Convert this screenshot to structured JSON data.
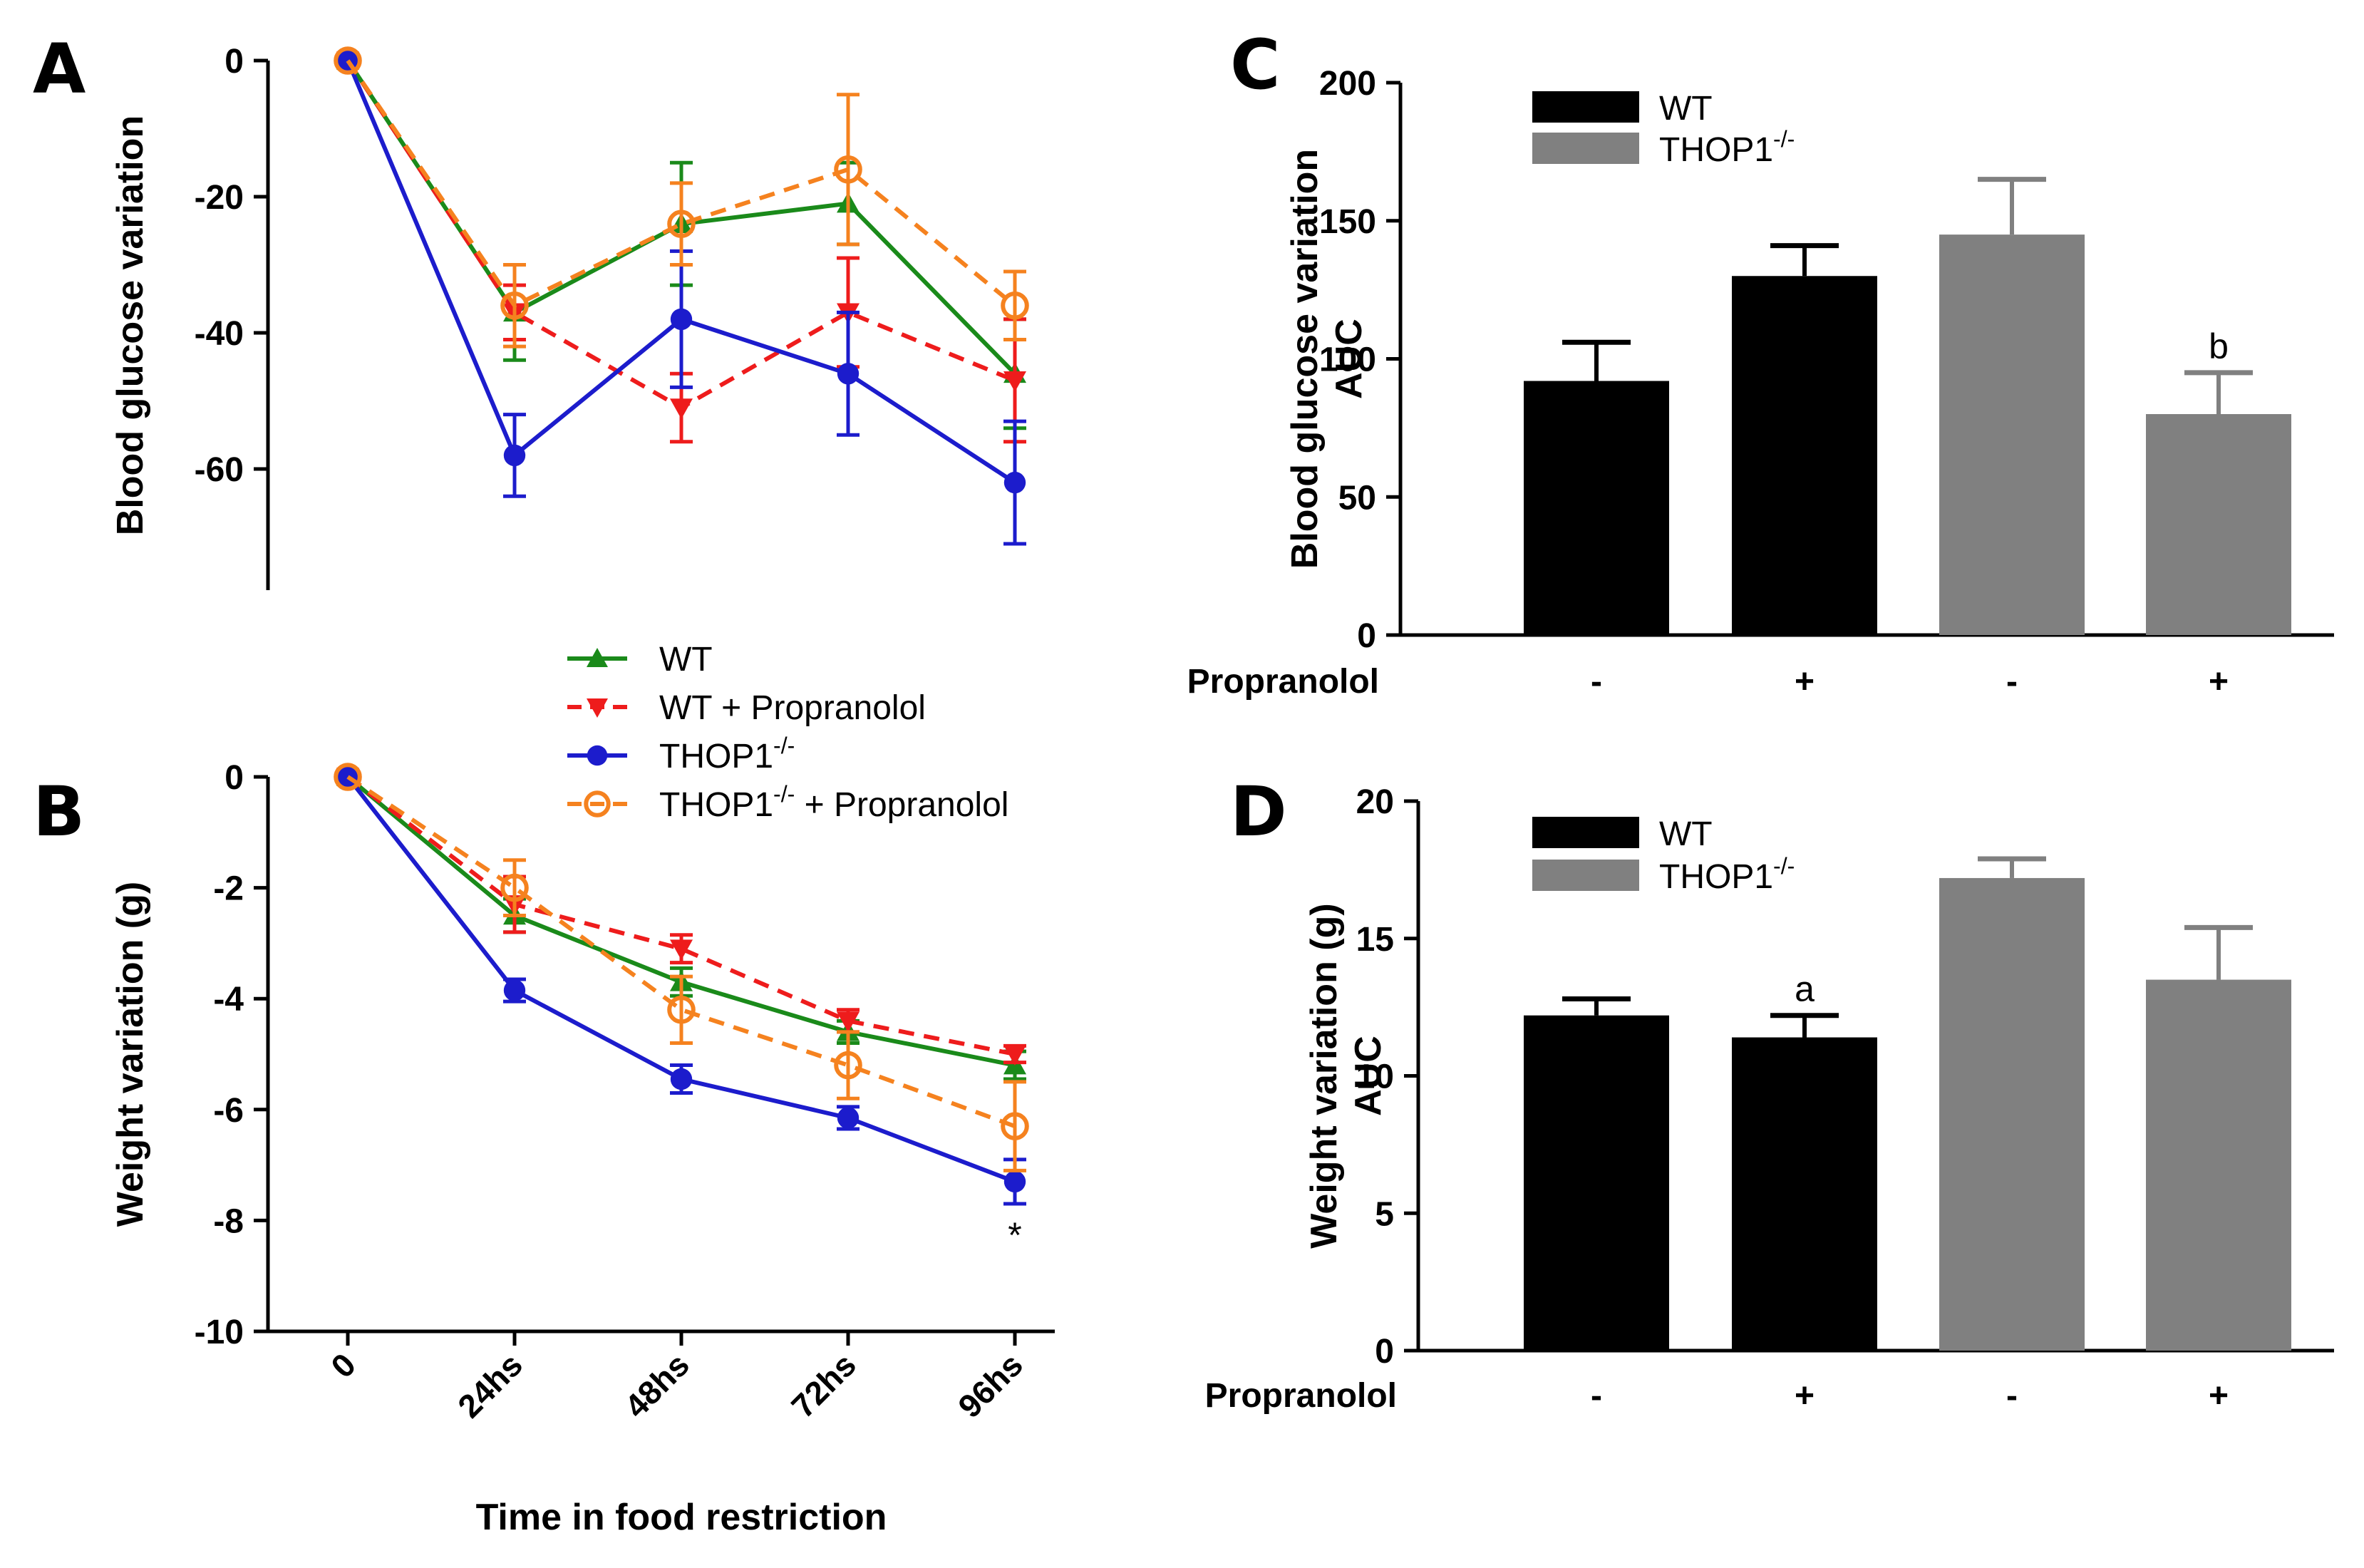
{
  "colors": {
    "wt": "#1a8a1a",
    "wt_propranolol": "#ee1c1c",
    "thop1": "#1c1ccc",
    "thop1_propranolol": "#f5821f",
    "bar_wt": "#000000",
    "bar_thop1": "#808080"
  },
  "legend": {
    "items": [
      {
        "label": "WT",
        "sup": "",
        "suffix": "",
        "color": "#1a8a1a",
        "marker": "triangle-up",
        "dash": false
      },
      {
        "label": "WT + Propranolol",
        "sup": "",
        "suffix": "",
        "color": "#ee1c1c",
        "marker": "triangle-down",
        "dash": true
      },
      {
        "label": "THOP1",
        "sup": "-/-",
        "suffix": "",
        "color": "#1c1ccc",
        "marker": "circle",
        "dash": false
      },
      {
        "label": "THOP1",
        "sup": "-/-",
        "suffix": " + Propranolol",
        "color": "#f5821f",
        "marker": "open-circle",
        "dash": true
      }
    ]
  },
  "shared_xlabel": "Time in food restriction",
  "chart_data": [
    {
      "panel": "A",
      "type": "line",
      "ylabel": "Blood glucose variation",
      "categories": [
        "0",
        "24hs",
        "48hs",
        "72hs",
        "96hs"
      ],
      "ylim": [
        -75,
        0
      ],
      "yticks": [
        0,
        -20,
        -40,
        -60
      ],
      "series": [
        {
          "name": "WT",
          "values": [
            0,
            -37,
            -24,
            -21,
            -46
          ],
          "errors": [
            0,
            7,
            9,
            6,
            8
          ]
        },
        {
          "name": "WT + Propranolol",
          "values": [
            0,
            -37,
            -51,
            -37,
            -47
          ],
          "errors": [
            0,
            4,
            5,
            8,
            9
          ]
        },
        {
          "name": "THOP1-/-",
          "values": [
            0,
            -58,
            -38,
            -46,
            -62
          ],
          "errors": [
            0,
            6,
            10,
            9,
            9
          ]
        },
        {
          "name": "THOP1-/- + Propranolol",
          "values": [
            0,
            -36,
            -24,
            -16,
            -36
          ],
          "errors": [
            0,
            6,
            6,
            11,
            5
          ]
        }
      ]
    },
    {
      "panel": "B",
      "type": "line",
      "ylabel": "Weight variation (g)",
      "xlabel": "Time in food restriction",
      "categories": [
        "0",
        "24hs",
        "48hs",
        "72hs",
        "96hs"
      ],
      "ylim": [
        -10,
        0
      ],
      "yticks": [
        0,
        -2,
        -4,
        -6,
        -8,
        -10
      ],
      "annotations": [
        {
          "text": "*",
          "category": "96hs"
        }
      ],
      "series": [
        {
          "name": "WT",
          "values": [
            0,
            -2.5,
            -3.7,
            -4.6,
            -5.2
          ],
          "errors": [
            0,
            0.3,
            0.25,
            0.2,
            0.25
          ]
        },
        {
          "name": "WT + Propranolol",
          "values": [
            0,
            -2.3,
            -3.1,
            -4.4,
            -5.0
          ],
          "errors": [
            0,
            0.5,
            0.25,
            0.2,
            0.15
          ]
        },
        {
          "name": "THOP1-/-",
          "values": [
            0,
            -3.85,
            -5.45,
            -6.15,
            -7.3
          ],
          "errors": [
            0,
            0.2,
            0.25,
            0.2,
            0.4
          ]
        },
        {
          "name": "THOP1-/- + Propranolol",
          "values": [
            0,
            -2.0,
            -4.2,
            -5.2,
            -6.3
          ],
          "errors": [
            0,
            0.5,
            0.6,
            0.6,
            0.8
          ]
        }
      ]
    },
    {
      "panel": "C",
      "type": "bar",
      "ylabel": [
        "Blood glucose variation",
        "AUC"
      ],
      "ylim": [
        0,
        200
      ],
      "yticks": [
        0,
        50,
        100,
        150,
        200
      ],
      "row_label": "Propranolol",
      "legend": [
        {
          "label": "WT",
          "sup": ""
        },
        {
          "label": "THOP1",
          "sup": "-/-"
        }
      ],
      "bars": [
        {
          "group": "WT",
          "propranolol": "-",
          "value": 92,
          "error": 14,
          "annot": ""
        },
        {
          "group": "WT",
          "propranolol": "+",
          "value": 130,
          "error": 11,
          "annot": ""
        },
        {
          "group": "THOP1-/-",
          "propranolol": "-",
          "value": 145,
          "error": 20,
          "annot": ""
        },
        {
          "group": "THOP1-/-",
          "propranolol": "+",
          "value": 80,
          "error": 15,
          "annot": "b"
        }
      ]
    },
    {
      "panel": "D",
      "type": "bar",
      "ylabel": [
        "Weight variation (g)",
        "AUC"
      ],
      "ylim": [
        0,
        20
      ],
      "yticks": [
        0,
        5,
        10,
        15,
        20
      ],
      "row_label": "Propranolol",
      "legend": [
        {
          "label": "WT",
          "sup": ""
        },
        {
          "label": "THOP1",
          "sup": "-/-"
        }
      ],
      "bars": [
        {
          "group": "WT",
          "propranolol": "-",
          "value": 12.2,
          "error": 0.6,
          "annot": ""
        },
        {
          "group": "WT",
          "propranolol": "+",
          "value": 11.4,
          "error": 0.8,
          "annot": "a"
        },
        {
          "group": "THOP1-/-",
          "propranolol": "-",
          "value": 17.2,
          "error": 0.7,
          "annot": ""
        },
        {
          "group": "THOP1-/-",
          "propranolol": "+",
          "value": 13.5,
          "error": 1.9,
          "annot": ""
        }
      ]
    }
  ]
}
